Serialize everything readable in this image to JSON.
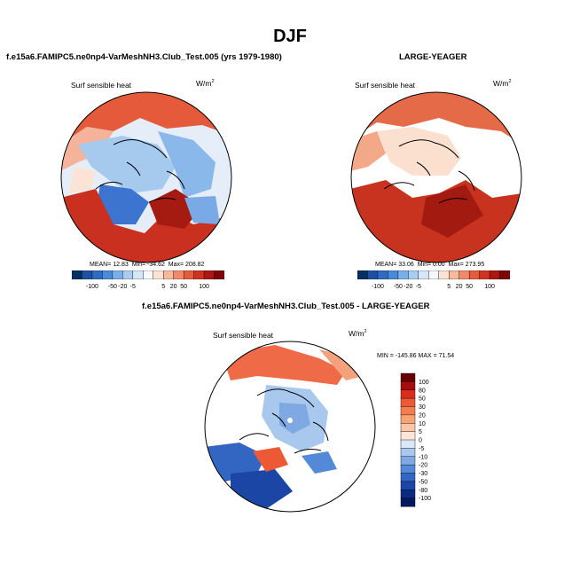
{
  "page": {
    "title": "DJF"
  },
  "chart_data": [
    {
      "type": "heatmap",
      "projection": "north-polar-stereographic",
      "case_label": "f.e15a6.FAMIPC5.ne0np4-VarMeshNH3.Club_Test.005 (yrs 1979-1980)",
      "variable": "Surf sensible heat",
      "units_base": "W/m",
      "units_exp": "2",
      "stats": {
        "mean": "12.83",
        "min": "-34.62",
        "max": "208.82"
      },
      "stats_labels": {
        "mean": "MEAN=",
        "min": "Min=",
        "max": "Max="
      },
      "colorbar_ticks": [
        "-100",
        "-50",
        "-20",
        "-5",
        "5",
        "20",
        "50",
        "100"
      ],
      "colorbar_colors": [
        "#053061",
        "#1d50a1",
        "#2f6bc0",
        "#4a8ad6",
        "#7aaee6",
        "#a9cdf0",
        "#d4e6f7",
        "#f5f9fe",
        "#fde3d3",
        "#f8b89a",
        "#f08a6a",
        "#e35d3d",
        "#d0321f",
        "#ad1712",
        "#7e0609"
      ]
    },
    {
      "type": "heatmap",
      "projection": "north-polar-stereographic",
      "case_label": "LARGE-YEAGER",
      "variable": "Surf sensible heat",
      "units_base": "W/m",
      "units_exp": "2",
      "stats": {
        "mean": "33.06",
        "min": "0.00",
        "max": "273.95"
      },
      "stats_labels": {
        "mean": "MEAN=",
        "min": "Min=",
        "max": "Max="
      },
      "colorbar_ticks": [
        "-100",
        "-50",
        "-20",
        "-5",
        "5",
        "20",
        "50",
        "100"
      ],
      "colorbar_colors": [
        "#053061",
        "#1d50a1",
        "#2f6bc0",
        "#4a8ad6",
        "#7aaee6",
        "#a9cdf0",
        "#d4e6f7",
        "#f5f9fe",
        "#fde3d3",
        "#f8b89a",
        "#f08a6a",
        "#e35d3d",
        "#d0321f",
        "#ad1712",
        "#7e0609"
      ]
    },
    {
      "type": "heatmap",
      "projection": "north-polar-stereographic",
      "case_label": "f.e15a6.FAMIPC5.ne0np4-VarMeshNH3.Club_Test.005 - LARGE-YEAGER",
      "variable": "Surf sensible heat",
      "units_base": "W/m",
      "units_exp": "2",
      "minmax_text": "MIN = -145.86 MAX =  71.54",
      "colorbar_ticks": [
        "100",
        "80",
        "50",
        "30",
        "20",
        "10",
        "5",
        "0",
        "-5",
        "-10",
        "-20",
        "-30",
        "-50",
        "-80",
        "-100"
      ],
      "colorbar_colors": [
        "#670000",
        "#a80d0d",
        "#d92d1e",
        "#ec5a35",
        "#f47d50",
        "#f9a274",
        "#fbc6a6",
        "#fde5d8",
        "#dbe8f7",
        "#a8c8ee",
        "#7ea9e3",
        "#5389d6",
        "#3366c3",
        "#1c46a6",
        "#0e2b84",
        "#041860"
      ]
    }
  ]
}
